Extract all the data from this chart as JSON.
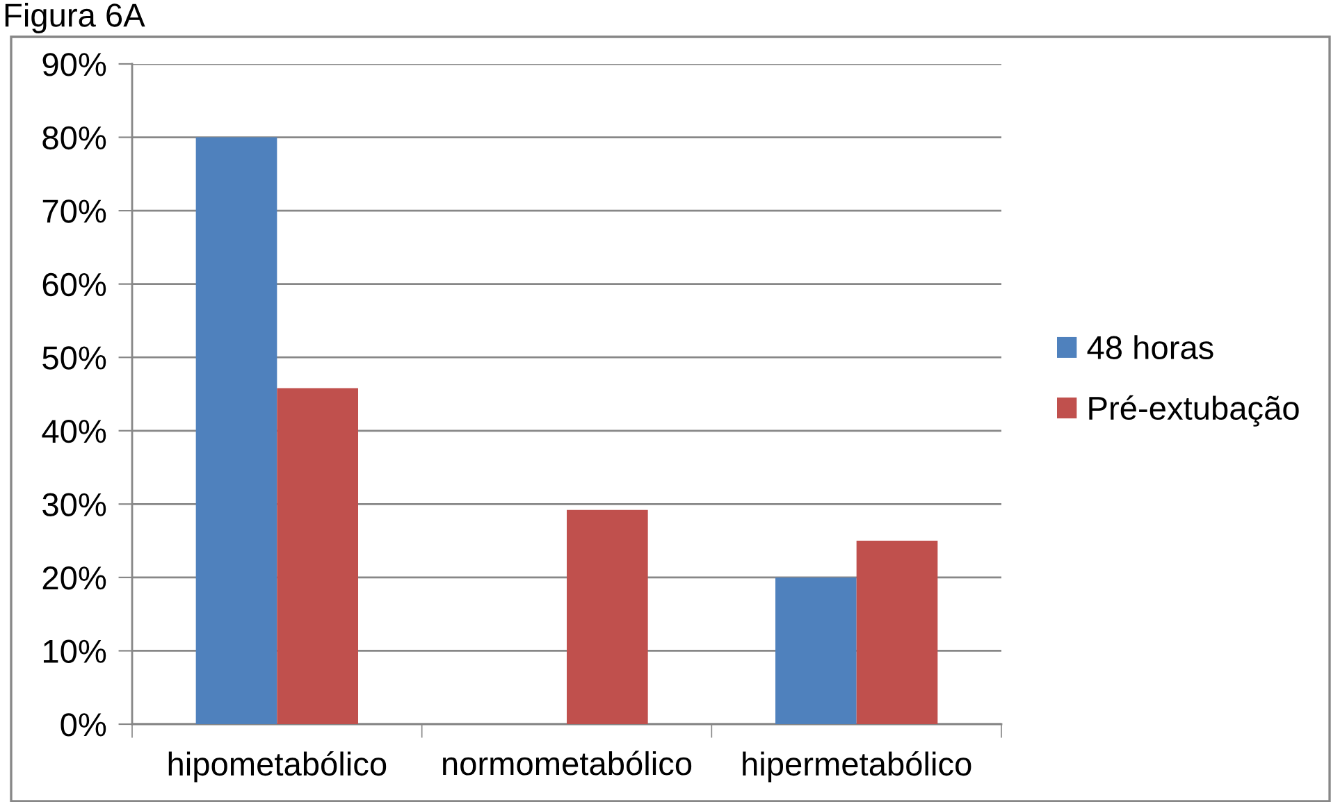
{
  "chart_data": {
    "type": "bar",
    "title": "Figura 6A",
    "categories": [
      "hipometabólico",
      "normometabólico",
      "hipermetabólico"
    ],
    "series": [
      {
        "name": "48 horas",
        "color": "#4f81bd",
        "values": [
          80,
          0,
          20
        ]
      },
      {
        "name": "Pré-extubação",
        "color": "#c0504d",
        "values": [
          45.8,
          29.2,
          25
        ]
      }
    ],
    "ylim": [
      0,
      90
    ],
    "yticks": [
      {
        "value": 0,
        "label": "0%"
      },
      {
        "value": 10,
        "label": "10%"
      },
      {
        "value": 20,
        "label": "20%"
      },
      {
        "value": 30,
        "label": "30%"
      },
      {
        "value": 40,
        "label": "40%"
      },
      {
        "value": 50,
        "label": "50%"
      },
      {
        "value": 60,
        "label": "60%"
      },
      {
        "value": 70,
        "label": "70%"
      },
      {
        "value": 80,
        "label": "80%"
      },
      {
        "value": 90,
        "label": "90%"
      }
    ],
    "grid": "y",
    "legend": "right"
  }
}
